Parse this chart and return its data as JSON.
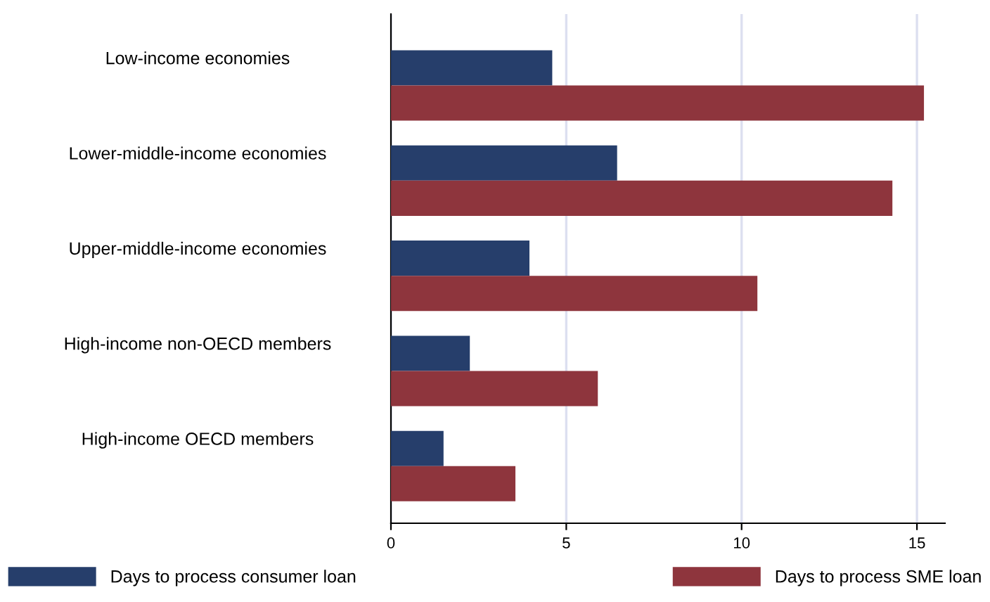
{
  "chart_data": {
    "type": "bar",
    "orientation": "horizontal",
    "categories": [
      "Low-income economies",
      "Lower-middle-income economies",
      "Upper-middle-income economies",
      "High-income non-OECD members",
      "High-income OECD members"
    ],
    "series": [
      {
        "name": "Days to process consumer loan",
        "color": "#263e6b",
        "values": [
          4.6,
          6.45,
          3.95,
          2.25,
          1.5
        ]
      },
      {
        "name": "Days to process SME loan",
        "color": "#8e353d",
        "values": [
          15.2,
          14.3,
          10.45,
          5.9,
          3.55
        ]
      }
    ],
    "xlim": [
      0,
      15.8
    ],
    "xticks": [
      0,
      5,
      10,
      15
    ],
    "grid": "x",
    "legend": "bottom"
  }
}
